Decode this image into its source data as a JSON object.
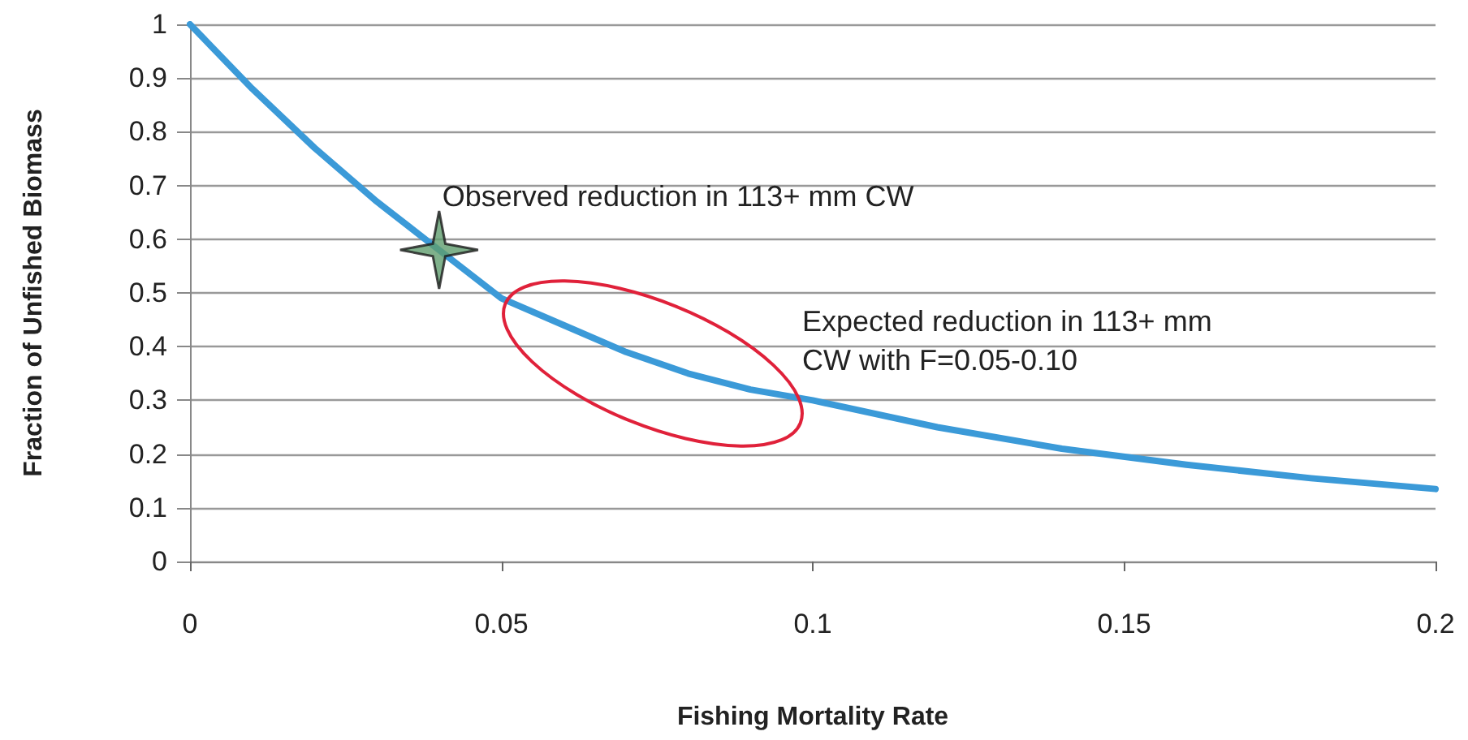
{
  "chart_data": {
    "type": "line",
    "xlabel": "Fishing Mortality Rate",
    "ylabel": "Fraction of Unfished Biomass",
    "x": [
      0,
      0.01,
      0.02,
      0.03,
      0.04,
      0.05,
      0.06,
      0.07,
      0.08,
      0.09,
      0.1,
      0.12,
      0.14,
      0.16,
      0.18,
      0.2
    ],
    "series": [
      {
        "type": "line",
        "color": "#3b9ad8",
        "values": [
          1,
          0.88,
          0.77,
          0.67,
          0.58,
          0.49,
          0.44,
          0.39,
          0.35,
          0.32,
          0.3,
          0.25,
          0.21,
          0.18,
          0.155,
          0.135
        ]
      },
      {
        "type": "scatter",
        "marker": "star",
        "color": "#5f9e6e",
        "x": [
          0.04
        ],
        "values": [
          0.58
        ]
      }
    ],
    "xlim": [
      0,
      0.2
    ],
    "xticks": [
      0,
      0.05,
      0.1,
      0.15,
      0.2
    ],
    "ylim": [
      0,
      1
    ],
    "yticks": [
      0,
      0.1,
      0.2,
      0.3,
      0.4,
      0.5,
      0.6,
      0.7,
      0.8,
      0.9,
      1
    ],
    "grid": "y",
    "annotations": [
      {
        "text": "Observed reduction in 113+ mm CW",
        "x": 0.04,
        "y": 0.58
      },
      "Expected reduction in 113+ mm CW with F=0.05-0.10"
    ]
  }
}
